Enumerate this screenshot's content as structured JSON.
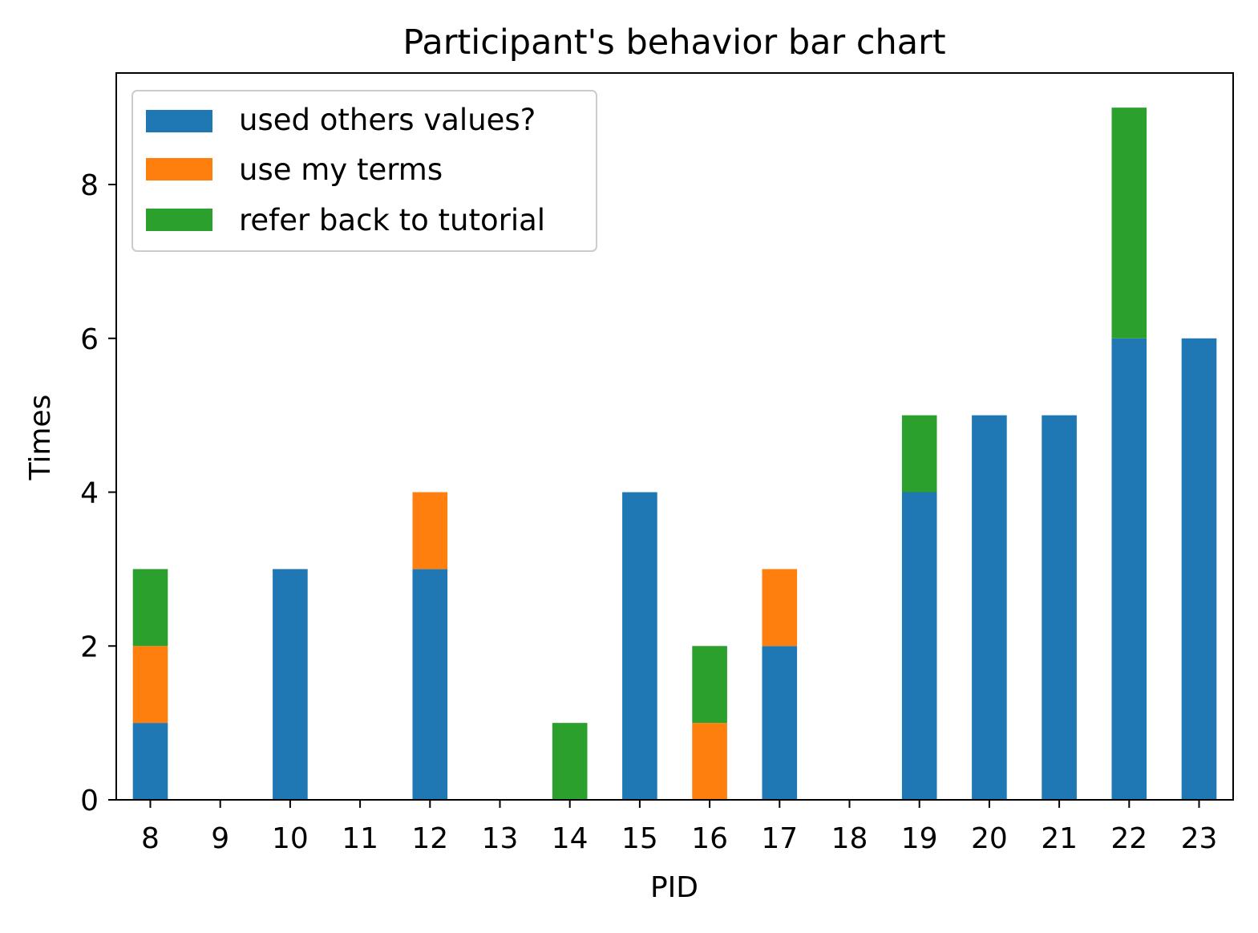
{
  "chart_data": {
    "type": "bar",
    "stacked": true,
    "title": "Participant's behavior bar chart",
    "xlabel": "PID",
    "ylabel": "Times",
    "categories": [
      "8",
      "9",
      "10",
      "11",
      "12",
      "13",
      "14",
      "15",
      "16",
      "17",
      "18",
      "19",
      "20",
      "21",
      "22",
      "23"
    ],
    "series": [
      {
        "name": "used others values?",
        "color": "#1f77b4",
        "values": [
          1,
          0,
          3,
          0,
          3,
          0,
          0,
          4,
          0,
          2,
          0,
          4,
          5,
          5,
          6,
          6
        ]
      },
      {
        "name": "use my terms",
        "color": "#ff7f0e",
        "values": [
          1,
          0,
          0,
          0,
          1,
          0,
          0,
          0,
          1,
          1,
          0,
          0,
          0,
          0,
          0,
          0
        ]
      },
      {
        "name": "refer back to tutorial",
        "color": "#2ca02c",
        "values": [
          1,
          0,
          0,
          0,
          0,
          0,
          1,
          0,
          1,
          0,
          0,
          1,
          0,
          0,
          3,
          0
        ]
      }
    ],
    "ylim": [
      0,
      9.45
    ],
    "yticks": [
      "0",
      "2",
      "4",
      "6",
      "8"
    ],
    "grid": false,
    "legend_position": "top-left"
  }
}
